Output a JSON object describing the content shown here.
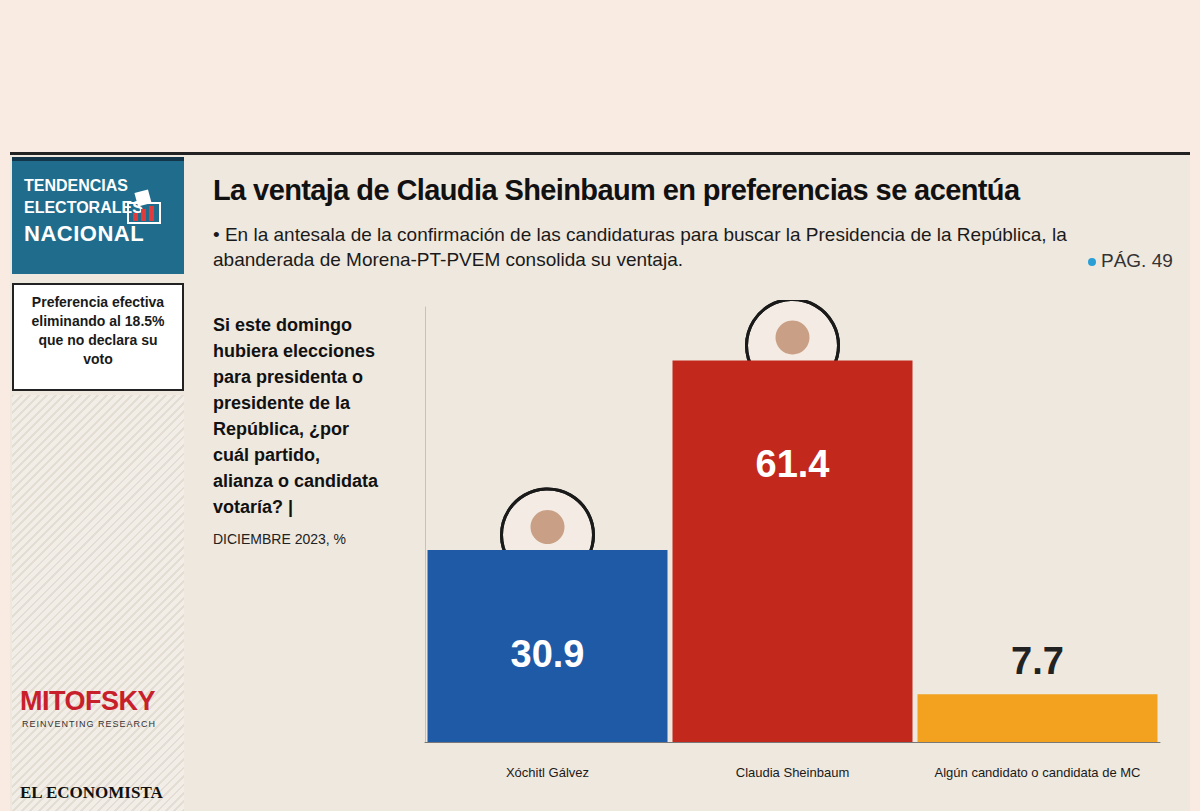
{
  "sidebar": {
    "section": [
      "TENDENCIAS",
      "ELECTORALES",
      "NACIONAL"
    ],
    "note": "Preferencia efectiva eliminando al 18.5% que no declara su voto",
    "source": [
      "MITOFSKY",
      "REINVENTING RESEARCH",
      "EL ECONOMISTA"
    ]
  },
  "page_ref": "PÁG. 49",
  "chart_data": {
    "type": "bar",
    "title": "La ventaja de Claudia Sheinbaum en preferencias se acentúa",
    "subtitle": "• En la antesala de la confirmación de las candidaturas para buscar la Presidencia de la República, la abanderada de Morena-PT-PVEM consolida su ventaja.",
    "annotations": [
      "Si este domingo hubiera elecciones para presidenta o presidente de la República, ¿por cuál partido, alianza o candidata votaría? |",
      "DICIEMBRE 2023, %"
    ],
    "categories": [
      "Xóchitl Gálvez",
      "Claudia Sheinbaum",
      "Algún candidato o candidata de MC"
    ],
    "values": [
      30.9,
      61.4,
      7.7
    ],
    "colors": [
      "#1f5aa6",
      "#c2281c",
      "#f2a21e"
    ],
    "ylim": [
      0,
      70
    ],
    "data_labels": true,
    "tick_labels": "x",
    "grid": false
  }
}
